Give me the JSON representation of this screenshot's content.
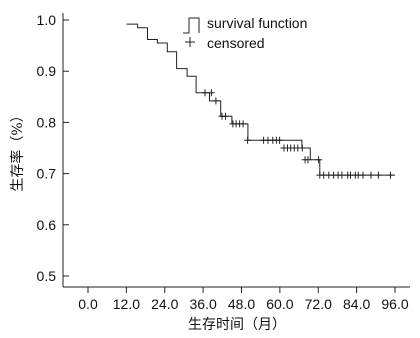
{
  "chart_data": {
    "type": "line",
    "xlabel": "生存时间（月）",
    "ylabel": "生存率（%）",
    "x_ticks": [
      "0.0",
      "12.0",
      "24.0",
      "36.0",
      "48.0",
      "60.0",
      "72.0",
      "84.0",
      "96.0"
    ],
    "y_ticks": [
      "0.5",
      "0.6",
      "0.7",
      "0.8",
      "0.9",
      "1.0"
    ],
    "xlim": [
      0,
      96
    ],
    "ylim": [
      0.47,
      1.02
    ],
    "grid": false,
    "legend_position": "top-center",
    "series": [
      {
        "name": "survival function",
        "step_x": [
          12.0,
          15.5,
          18.6,
          21.7,
          24.8,
          27.7,
          31.0,
          33.8,
          35.2,
          38.0,
          41.5,
          45.0,
          50.0,
          58.4,
          66.9,
          69.5,
          72.5,
          96.0
        ],
        "step_y": [
          0.992,
          0.985,
          0.962,
          0.955,
          0.938,
          0.905,
          0.89,
          0.858,
          0.858,
          0.842,
          0.812,
          0.797,
          0.765,
          0.765,
          0.75,
          0.727,
          0.697,
          0.697
        ]
      }
    ],
    "censored": {
      "name": "censored",
      "x": [
        36.6,
        38.6,
        40.0,
        41.9,
        43.0,
        45.3,
        46.3,
        47.4,
        48.5,
        49.9,
        54.9,
        56.3,
        57.8,
        58.9,
        59.9,
        61.3,
        62.4,
        63.4,
        64.5,
        65.6,
        67.0,
        67.9,
        68.8,
        72.1,
        72.5,
        73.7,
        75.3,
        76.8,
        78.2,
        79.4,
        81.2,
        82.1,
        83.6,
        84.5,
        86.0,
        88.5,
        90.8,
        94.6
      ],
      "y": [
        0.858,
        0.858,
        0.842,
        0.812,
        0.812,
        0.797,
        0.797,
        0.797,
        0.797,
        0.765,
        0.765,
        0.765,
        0.765,
        0.765,
        0.765,
        0.75,
        0.75,
        0.75,
        0.75,
        0.75,
        0.75,
        0.727,
        0.727,
        0.727,
        0.697,
        0.697,
        0.697,
        0.697,
        0.697,
        0.697,
        0.697,
        0.697,
        0.697,
        0.697,
        0.697,
        0.697,
        0.697,
        0.697
      ]
    },
    "legend": {
      "survival_label": "survival function",
      "censored_label": "censored"
    }
  },
  "colors": {
    "line": "#222222",
    "axis": "#222222",
    "text": "#111111"
  }
}
